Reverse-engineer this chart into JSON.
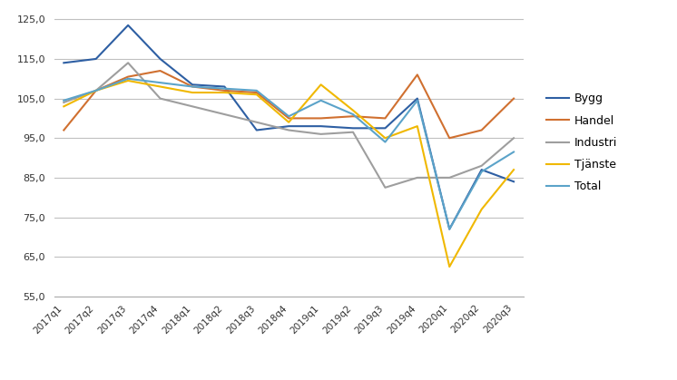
{
  "quarters": [
    "2017q1",
    "2017q2",
    "2017q3",
    "2017q4",
    "2018q1",
    "2018q2",
    "2018q3",
    "2018q4",
    "2019q1",
    "2019q2",
    "2019q3",
    "2019q4",
    "2020q1",
    "2020q2",
    "2020q3"
  ],
  "Bygg": [
    114.0,
    115.0,
    123.5,
    115.0,
    108.5,
    108.0,
    97.0,
    98.0,
    98.0,
    97.5,
    97.5,
    105.0,
    72.0,
    87.0,
    84.0
  ],
  "Handel": [
    97.0,
    107.0,
    110.5,
    112.0,
    108.0,
    107.0,
    106.5,
    100.0,
    100.0,
    100.5,
    100.0,
    111.0,
    95.0,
    97.0,
    105.0
  ],
  "Industri": [
    104.0,
    107.0,
    114.0,
    105.0,
    103.0,
    101.0,
    99.0,
    97.0,
    96.0,
    96.5,
    82.5,
    85.0,
    85.0,
    88.0,
    95.0
  ],
  "Tjänste": [
    103.0,
    107.0,
    109.5,
    108.0,
    106.5,
    106.5,
    106.0,
    99.0,
    108.5,
    102.0,
    95.0,
    98.0,
    62.5,
    77.0,
    87.0
  ],
  "Total": [
    104.5,
    107.0,
    110.0,
    109.0,
    108.0,
    107.5,
    107.0,
    100.5,
    104.5,
    101.0,
    94.0,
    104.5,
    72.0,
    86.5,
    91.5
  ],
  "colors": {
    "Bygg": "#2e5fa3",
    "Handel": "#d07030",
    "Industri": "#9e9e9e",
    "Tjänste": "#f0b800",
    "Total": "#5ba3c9"
  },
  "ylim": [
    55.0,
    127.0
  ],
  "yticks": [
    55.0,
    65.0,
    75.0,
    85.0,
    95.0,
    105.0,
    115.0,
    125.0
  ],
  "ytick_labels": [
    "55,0",
    "65,0",
    "75,0",
    "85,0",
    "95,0",
    "105,0",
    "115,0",
    "125,0"
  ],
  "bg_color": "#ffffff",
  "grid_color": "#c0c0c0",
  "series_names": [
    "Bygg",
    "Handel",
    "Industri",
    "Tjänste",
    "Total"
  ]
}
